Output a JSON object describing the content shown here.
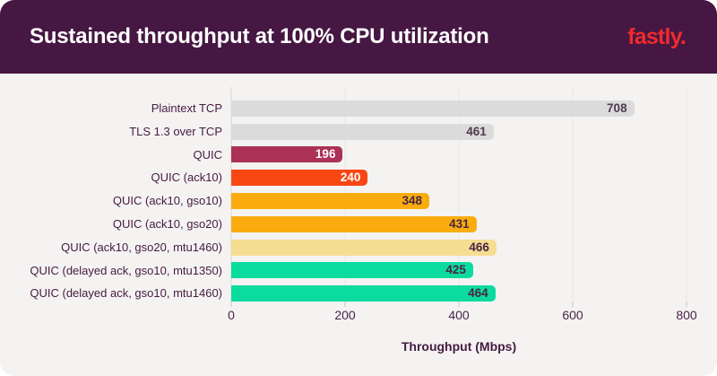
{
  "header": {
    "logo_text": "fastly."
  },
  "colors": {
    "header_background": "#451742",
    "title_text": "#ffffff",
    "logo_red": "#ef2b2d",
    "chart_background": "#f4f3f2",
    "label_text": "#461a40",
    "gridline": "#e7e5e5"
  },
  "chart_data": {
    "type": "bar",
    "orientation": "horizontal",
    "title": "Sustained throughput at 100% CPU utilization",
    "xlabel": "Throughput (Mbps)",
    "xlim": [
      0,
      800
    ],
    "xticks": [
      0,
      200,
      400,
      600,
      800
    ],
    "grid": true,
    "categories": [
      "Plaintext TCP",
      "TLS 1.3 over TCP",
      "QUIC",
      "QUIC (ack10)",
      "QUIC (ack10, gso10)",
      "QUIC (ack10, gso20)",
      "QUIC (ack10, gso20, mtu1460)",
      "QUIC (delayed ack, gso10, mtu1350)",
      "QUIC (delayed ack, gso10, mtu1460)"
    ],
    "values": [
      708,
      461,
      196,
      240,
      348,
      431,
      466,
      425,
      464
    ],
    "bar_colors": [
      "#dcdbdb",
      "#dcdbdb",
      "#ac3158",
      "#f94713",
      "#faac0f",
      "#faac0f",
      "#f5dd92",
      "#0cdba0",
      "#0cdba0"
    ],
    "value_label_colors": [
      "#4d3b4d",
      "#4d3b4d",
      "#ffffff",
      "#ffffff",
      "#472642",
      "#472642",
      "#472642",
      "#472642",
      "#472642"
    ]
  }
}
